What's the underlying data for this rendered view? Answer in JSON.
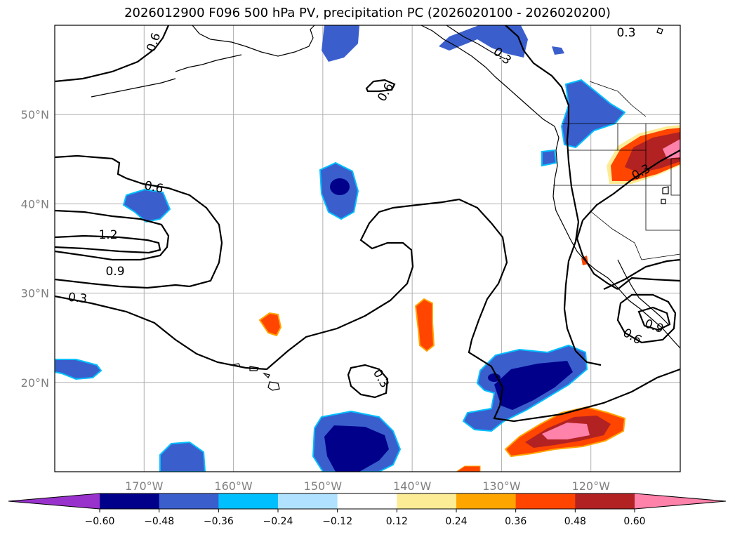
{
  "title": "2026012900 F096 500 hPa PV, precipitation PC (2026020100 - 2026020200)",
  "map": {
    "lon_range": [
      -180,
      -110
    ],
    "lat_range": [
      10,
      60
    ],
    "lat_ticks": [
      {
        "value": 20,
        "label": "20°N"
      },
      {
        "value": 30,
        "label": "30°N"
      },
      {
        "value": 40,
        "label": "40°N"
      },
      {
        "value": 50,
        "label": "50°N"
      }
    ],
    "lon_ticks": [
      {
        "value": -170,
        "label": "170°W"
      },
      {
        "value": -160,
        "label": "160°W"
      },
      {
        "value": -150,
        "label": "150°W"
      },
      {
        "value": -140,
        "label": "140°W"
      },
      {
        "value": -130,
        "label": "130°W"
      },
      {
        "value": -120,
        "label": "120°W"
      }
    ],
    "grid": true
  },
  "contour_labels": [
    "0.6",
    "0.6",
    "0.3",
    "0.3",
    "0.6",
    "1.2",
    "0.9",
    "0.3",
    "0.3",
    "0.3",
    "0.6",
    "0.9"
  ],
  "colorbar": {
    "colors": [
      "#9932cc",
      "#00008b",
      "#3a5fcd",
      "#00bfff",
      "#b0e2ff",
      "#ffffff",
      "#fdec96",
      "#ffa500",
      "#ff4500",
      "#b22222",
      "#ff82ab"
    ],
    "tick_labels": [
      "−0.60",
      "−0.48",
      "−0.36",
      "−0.24",
      "−0.12",
      "0.12",
      "0.24",
      "0.36",
      "0.48",
      "0.60"
    ]
  }
}
